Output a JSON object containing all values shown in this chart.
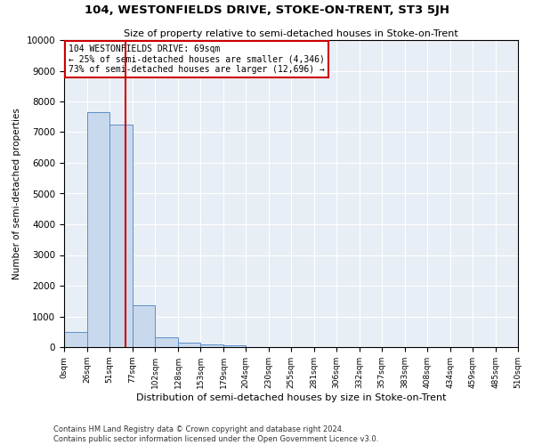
{
  "title": "104, WESTONFIELDS DRIVE, STOKE-ON-TRENT, ST3 5JH",
  "subtitle": "Size of property relative to semi-detached houses in Stoke-on-Trent",
  "xlabel": "Distribution of semi-detached houses by size in Stoke-on-Trent",
  "ylabel": "Number of semi-detached properties",
  "bar_values": [
    500,
    7650,
    7250,
    1350,
    310,
    145,
    95,
    60,
    0,
    0,
    0,
    0,
    0,
    0,
    0,
    0,
    0,
    0,
    0,
    0
  ],
  "bin_edges": [
    0,
    26,
    51,
    77,
    102,
    128,
    153,
    179,
    204,
    230,
    255,
    281,
    306,
    332,
    357,
    383,
    408,
    434,
    459,
    485,
    510
  ],
  "bin_labels": [
    "0sqm",
    "26sqm",
    "51sqm",
    "77sqm",
    "102sqm",
    "128sqm",
    "153sqm",
    "179sqm",
    "204sqm",
    "230sqm",
    "255sqm",
    "281sqm",
    "306sqm",
    "332sqm",
    "357sqm",
    "383sqm",
    "408sqm",
    "434sqm",
    "459sqm",
    "485sqm",
    "510sqm"
  ],
  "bar_color": "#c9d9ed",
  "bar_edge_color": "#5b8fc9",
  "annotation_line1": "104 WESTONFIELDS DRIVE: 69sqm",
  "annotation_line2": "← 25% of semi-detached houses are smaller (4,346)",
  "annotation_line3": "73% of semi-detached houses are larger (12,696) →",
  "annotation_box_color": "#ffffff",
  "annotation_box_edge_color": "#cc0000",
  "vline_x": 69,
  "vline_color": "#cc0000",
  "ylim": [
    0,
    10000
  ],
  "yticks": [
    0,
    1000,
    2000,
    3000,
    4000,
    5000,
    6000,
    7000,
    8000,
    9000,
    10000
  ],
  "footer_line1": "Contains HM Land Registry data © Crown copyright and database right 2024.",
  "footer_line2": "Contains public sector information licensed under the Open Government Licence v3.0.",
  "bg_color": "#e8eef5"
}
